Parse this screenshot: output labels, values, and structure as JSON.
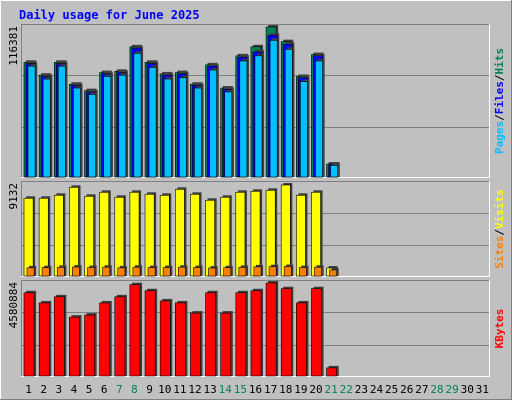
{
  "title": "Daily usage for June 2025",
  "colors": {
    "background": "#c0c0c0",
    "title": "#0000ff",
    "hits": "#00805c",
    "files": "#0000ff",
    "pages": "#00c0ff",
    "visits": "#ffff00",
    "sites": "#ff8000",
    "kbytes": "#ff0000",
    "day_weekday": "#000000",
    "day_weekend": "#00805c",
    "grid": "#808080"
  },
  "chart_data": [
    {
      "type": "bar",
      "panel": "top",
      "ymax_label": "116381",
      "ymax": 116381,
      "right_label_parts": [
        {
          "text": "Pages",
          "role": "pages"
        },
        {
          "text": "/",
          "role": "sep"
        },
        {
          "text": "Files",
          "role": "files"
        },
        {
          "text": "/",
          "role": "sep"
        },
        {
          "text": "Hits",
          "role": "hits"
        }
      ],
      "x": [
        1,
        2,
        3,
        4,
        5,
        6,
        7,
        8,
        9,
        10,
        11,
        12,
        13,
        14,
        15,
        16,
        17,
        18,
        19,
        20,
        21
      ],
      "series": [
        {
          "name": "Hits",
          "values": [
            89000,
            79000,
            89000,
            72000,
            67000,
            81000,
            82000,
            101000,
            89000,
            80000,
            81000,
            72000,
            87000,
            69000,
            94000,
            101000,
            116381,
            105000,
            78000,
            95000,
            10000
          ]
        },
        {
          "name": "Files",
          "values": [
            88000,
            78000,
            88000,
            71000,
            66000,
            80000,
            81000,
            100000,
            88000,
            79000,
            80000,
            71000,
            86000,
            68000,
            93000,
            97000,
            110000,
            103000,
            77000,
            94000,
            10000
          ]
        },
        {
          "name": "Pages",
          "values": [
            86000,
            76000,
            86000,
            69000,
            64000,
            78000,
            79000,
            96000,
            85000,
            76000,
            77000,
            69000,
            83000,
            66000,
            90000,
            94000,
            106000,
            99000,
            74000,
            90000,
            9000
          ]
        }
      ]
    },
    {
      "type": "bar",
      "panel": "middle",
      "ymax_label": "9132",
      "ymax": 9132,
      "right_label_parts": [
        {
          "text": "Sites",
          "role": "sites"
        },
        {
          "text": "/",
          "role": "sep"
        },
        {
          "text": "Visits",
          "role": "visits"
        }
      ],
      "x": [
        1,
        2,
        3,
        4,
        5,
        6,
        7,
        8,
        9,
        10,
        11,
        12,
        13,
        14,
        15,
        16,
        17,
        18,
        19,
        20,
        21
      ],
      "series": [
        {
          "name": "Visits",
          "values": [
            7800,
            7800,
            8100,
            8900,
            8000,
            8400,
            7900,
            8400,
            8200,
            8100,
            8700,
            8200,
            7600,
            7900,
            8400,
            8500,
            8600,
            9132,
            8100,
            8400,
            800
          ]
        },
        {
          "name": "Sites",
          "values": [
            480,
            490,
            510,
            530,
            500,
            520,
            480,
            520,
            500,
            500,
            520,
            500,
            470,
            490,
            510,
            540,
            550,
            560,
            500,
            520,
            320
          ]
        }
      ]
    },
    {
      "type": "bar",
      "panel": "bottom",
      "ymax_label": "4580884",
      "ymax": 4580884,
      "right_label_parts": [
        {
          "text": "KBytes",
          "role": "kbytes"
        }
      ],
      "x": [
        1,
        2,
        3,
        4,
        5,
        6,
        7,
        8,
        9,
        10,
        11,
        12,
        13,
        14,
        15,
        16,
        17,
        18,
        19,
        20,
        21
      ],
      "series": [
        {
          "name": "KBytes",
          "values": [
            4100000,
            3600000,
            3900000,
            2900000,
            3000000,
            3600000,
            3900000,
            4500000,
            4200000,
            3700000,
            3600000,
            3100000,
            4100000,
            3100000,
            4100000,
            4200000,
            4580884,
            4300000,
            3600000,
            4300000,
            400000
          ]
        }
      ]
    }
  ],
  "days": [
    {
      "label": "1",
      "weekend": false
    },
    {
      "label": "2",
      "weekend": false
    },
    {
      "label": "3",
      "weekend": false
    },
    {
      "label": "4",
      "weekend": false
    },
    {
      "label": "5",
      "weekend": false
    },
    {
      "label": "6",
      "weekend": false
    },
    {
      "label": "7",
      "weekend": true
    },
    {
      "label": "8",
      "weekend": true
    },
    {
      "label": "9",
      "weekend": false
    },
    {
      "label": "10",
      "weekend": false
    },
    {
      "label": "11",
      "weekend": false
    },
    {
      "label": "12",
      "weekend": false
    },
    {
      "label": "13",
      "weekend": false
    },
    {
      "label": "14",
      "weekend": true
    },
    {
      "label": "15",
      "weekend": true
    },
    {
      "label": "16",
      "weekend": false
    },
    {
      "label": "17",
      "weekend": false
    },
    {
      "label": "18",
      "weekend": false
    },
    {
      "label": "19",
      "weekend": false
    },
    {
      "label": "20",
      "weekend": false
    },
    {
      "label": "21",
      "weekend": true
    },
    {
      "label": "22",
      "weekend": true
    },
    {
      "label": "23",
      "weekend": false
    },
    {
      "label": "24",
      "weekend": false
    },
    {
      "label": "25",
      "weekend": false
    },
    {
      "label": "26",
      "weekend": false
    },
    {
      "label": "27",
      "weekend": false
    },
    {
      "label": "28",
      "weekend": true
    },
    {
      "label": "29",
      "weekend": true
    },
    {
      "label": "30",
      "weekend": false
    },
    {
      "label": "31",
      "weekend": false
    }
  ]
}
